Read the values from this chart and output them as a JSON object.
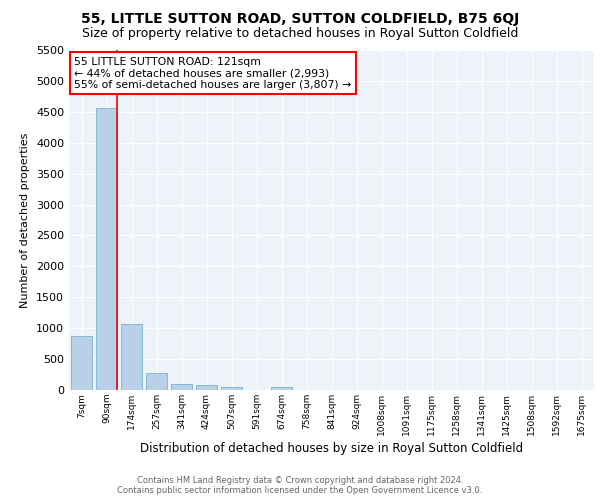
{
  "title": "55, LITTLE SUTTON ROAD, SUTTON COLDFIELD, B75 6QJ",
  "subtitle": "Size of property relative to detached houses in Royal Sutton Coldfield",
  "xlabel": "Distribution of detached houses by size in Royal Sutton Coldfield",
  "ylabel": "Number of detached properties",
  "footer_line1": "Contains HM Land Registry data © Crown copyright and database right 2024.",
  "footer_line2": "Contains public sector information licensed under the Open Government Licence v3.0.",
  "categories": [
    "7sqm",
    "90sqm",
    "174sqm",
    "257sqm",
    "341sqm",
    "424sqm",
    "507sqm",
    "591sqm",
    "674sqm",
    "758sqm",
    "841sqm",
    "924sqm",
    "1008sqm",
    "1091sqm",
    "1175sqm",
    "1258sqm",
    "1341sqm",
    "1425sqm",
    "1508sqm",
    "1592sqm",
    "1675sqm"
  ],
  "values": [
    880,
    4560,
    1060,
    280,
    100,
    80,
    50,
    0,
    50,
    0,
    0,
    0,
    0,
    0,
    0,
    0,
    0,
    0,
    0,
    0,
    0
  ],
  "bar_color": "#b8d0e8",
  "bar_edge_color": "#7ab0d4",
  "red_line_x": 1.4,
  "annotation_title": "55 LITTLE SUTTON ROAD: 121sqm",
  "annotation_line1": "← 44% of detached houses are smaller (2,993)",
  "annotation_line2": "55% of semi-detached houses are larger (3,807) →",
  "ylim": [
    0,
    5500
  ],
  "yticks": [
    0,
    500,
    1000,
    1500,
    2000,
    2500,
    3000,
    3500,
    4000,
    4500,
    5000,
    5500
  ],
  "bg_color": "#eef2f9",
  "grid_color": "#ffffff",
  "title_fontsize": 10,
  "subtitle_fontsize": 9
}
